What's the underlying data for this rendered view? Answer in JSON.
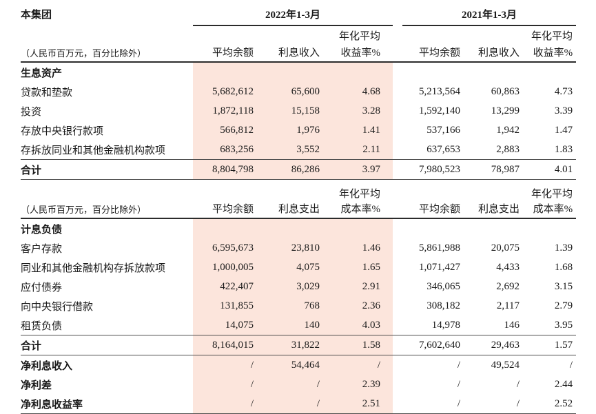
{
  "colors": {
    "highlight_band": "#fce5dc",
    "text": "#1a1a1a",
    "rule_heavy": "#2b2b2b",
    "rule_light": "#4a4a4a"
  },
  "header": {
    "group_label": "本集团",
    "period_2022": "2022年1-3月",
    "period_2021": "2021年1-3月",
    "unit_note": "（人民币百万元，百分比除外）",
    "assets_cols": {
      "annualized_prefix": "年化平均",
      "col1": "平均余额",
      "col2": "利息收入",
      "col3": "收益率%"
    },
    "liabilities_cols": {
      "annualized_prefix": "年化平均",
      "col1": "平均余额",
      "col2": "利息支出",
      "col3": "成本率%"
    }
  },
  "assets": {
    "section_title": "生息资产",
    "rows": [
      {
        "label": "贷款和垫款",
        "v": [
          "5,682,612",
          "65,600",
          "4.68",
          "5,213,564",
          "60,863",
          "4.73"
        ]
      },
      {
        "label": "投资",
        "v": [
          "1,872,118",
          "15,158",
          "3.28",
          "1,592,140",
          "13,299",
          "3.39"
        ]
      },
      {
        "label": "存放中央银行款项",
        "v": [
          "566,812",
          "1,976",
          "1.41",
          "537,166",
          "1,942",
          "1.47"
        ]
      },
      {
        "label": "存拆放同业和其他金融机构款项",
        "v": [
          "683,256",
          "3,552",
          "2.11",
          "637,653",
          "2,883",
          "1.83"
        ]
      }
    ],
    "total": {
      "label": "合计",
      "v": [
        "8,804,798",
        "86,286",
        "3.97",
        "7,980,523",
        "78,987",
        "4.01"
      ]
    }
  },
  "liabilities": {
    "section_title": "计息负债",
    "rows": [
      {
        "label": "客户存款",
        "v": [
          "6,595,673",
          "23,810",
          "1.46",
          "5,861,988",
          "20,075",
          "1.39"
        ]
      },
      {
        "label": "同业和其他金融机构存拆放款项",
        "v": [
          "1,000,005",
          "4,075",
          "1.65",
          "1,071,427",
          "4,433",
          "1.68"
        ]
      },
      {
        "label": "应付债券",
        "v": [
          "422,407",
          "3,029",
          "2.91",
          "346,065",
          "2,692",
          "3.15"
        ]
      },
      {
        "label": "向中央银行借款",
        "v": [
          "131,855",
          "768",
          "2.36",
          "308,182",
          "2,117",
          "2.79"
        ]
      },
      {
        "label": "租赁负债",
        "v": [
          "14,075",
          "140",
          "4.03",
          "14,978",
          "146",
          "3.95"
        ]
      }
    ],
    "total": {
      "label": "合计",
      "v": [
        "8,164,015",
        "31,822",
        "1.58",
        "7,602,640",
        "29,463",
        "1.57"
      ]
    }
  },
  "summary": [
    {
      "label": "净利息收入",
      "v": [
        "/",
        "54,464",
        "/",
        "/",
        "49,524",
        "/"
      ]
    },
    {
      "label": "净利差",
      "v": [
        "/",
        "/",
        "2.39",
        "/",
        "/",
        "2.44"
      ]
    },
    {
      "label": "净利息收益率",
      "v": [
        "/",
        "/",
        "2.51",
        "/",
        "/",
        "2.52"
      ]
    }
  ]
}
